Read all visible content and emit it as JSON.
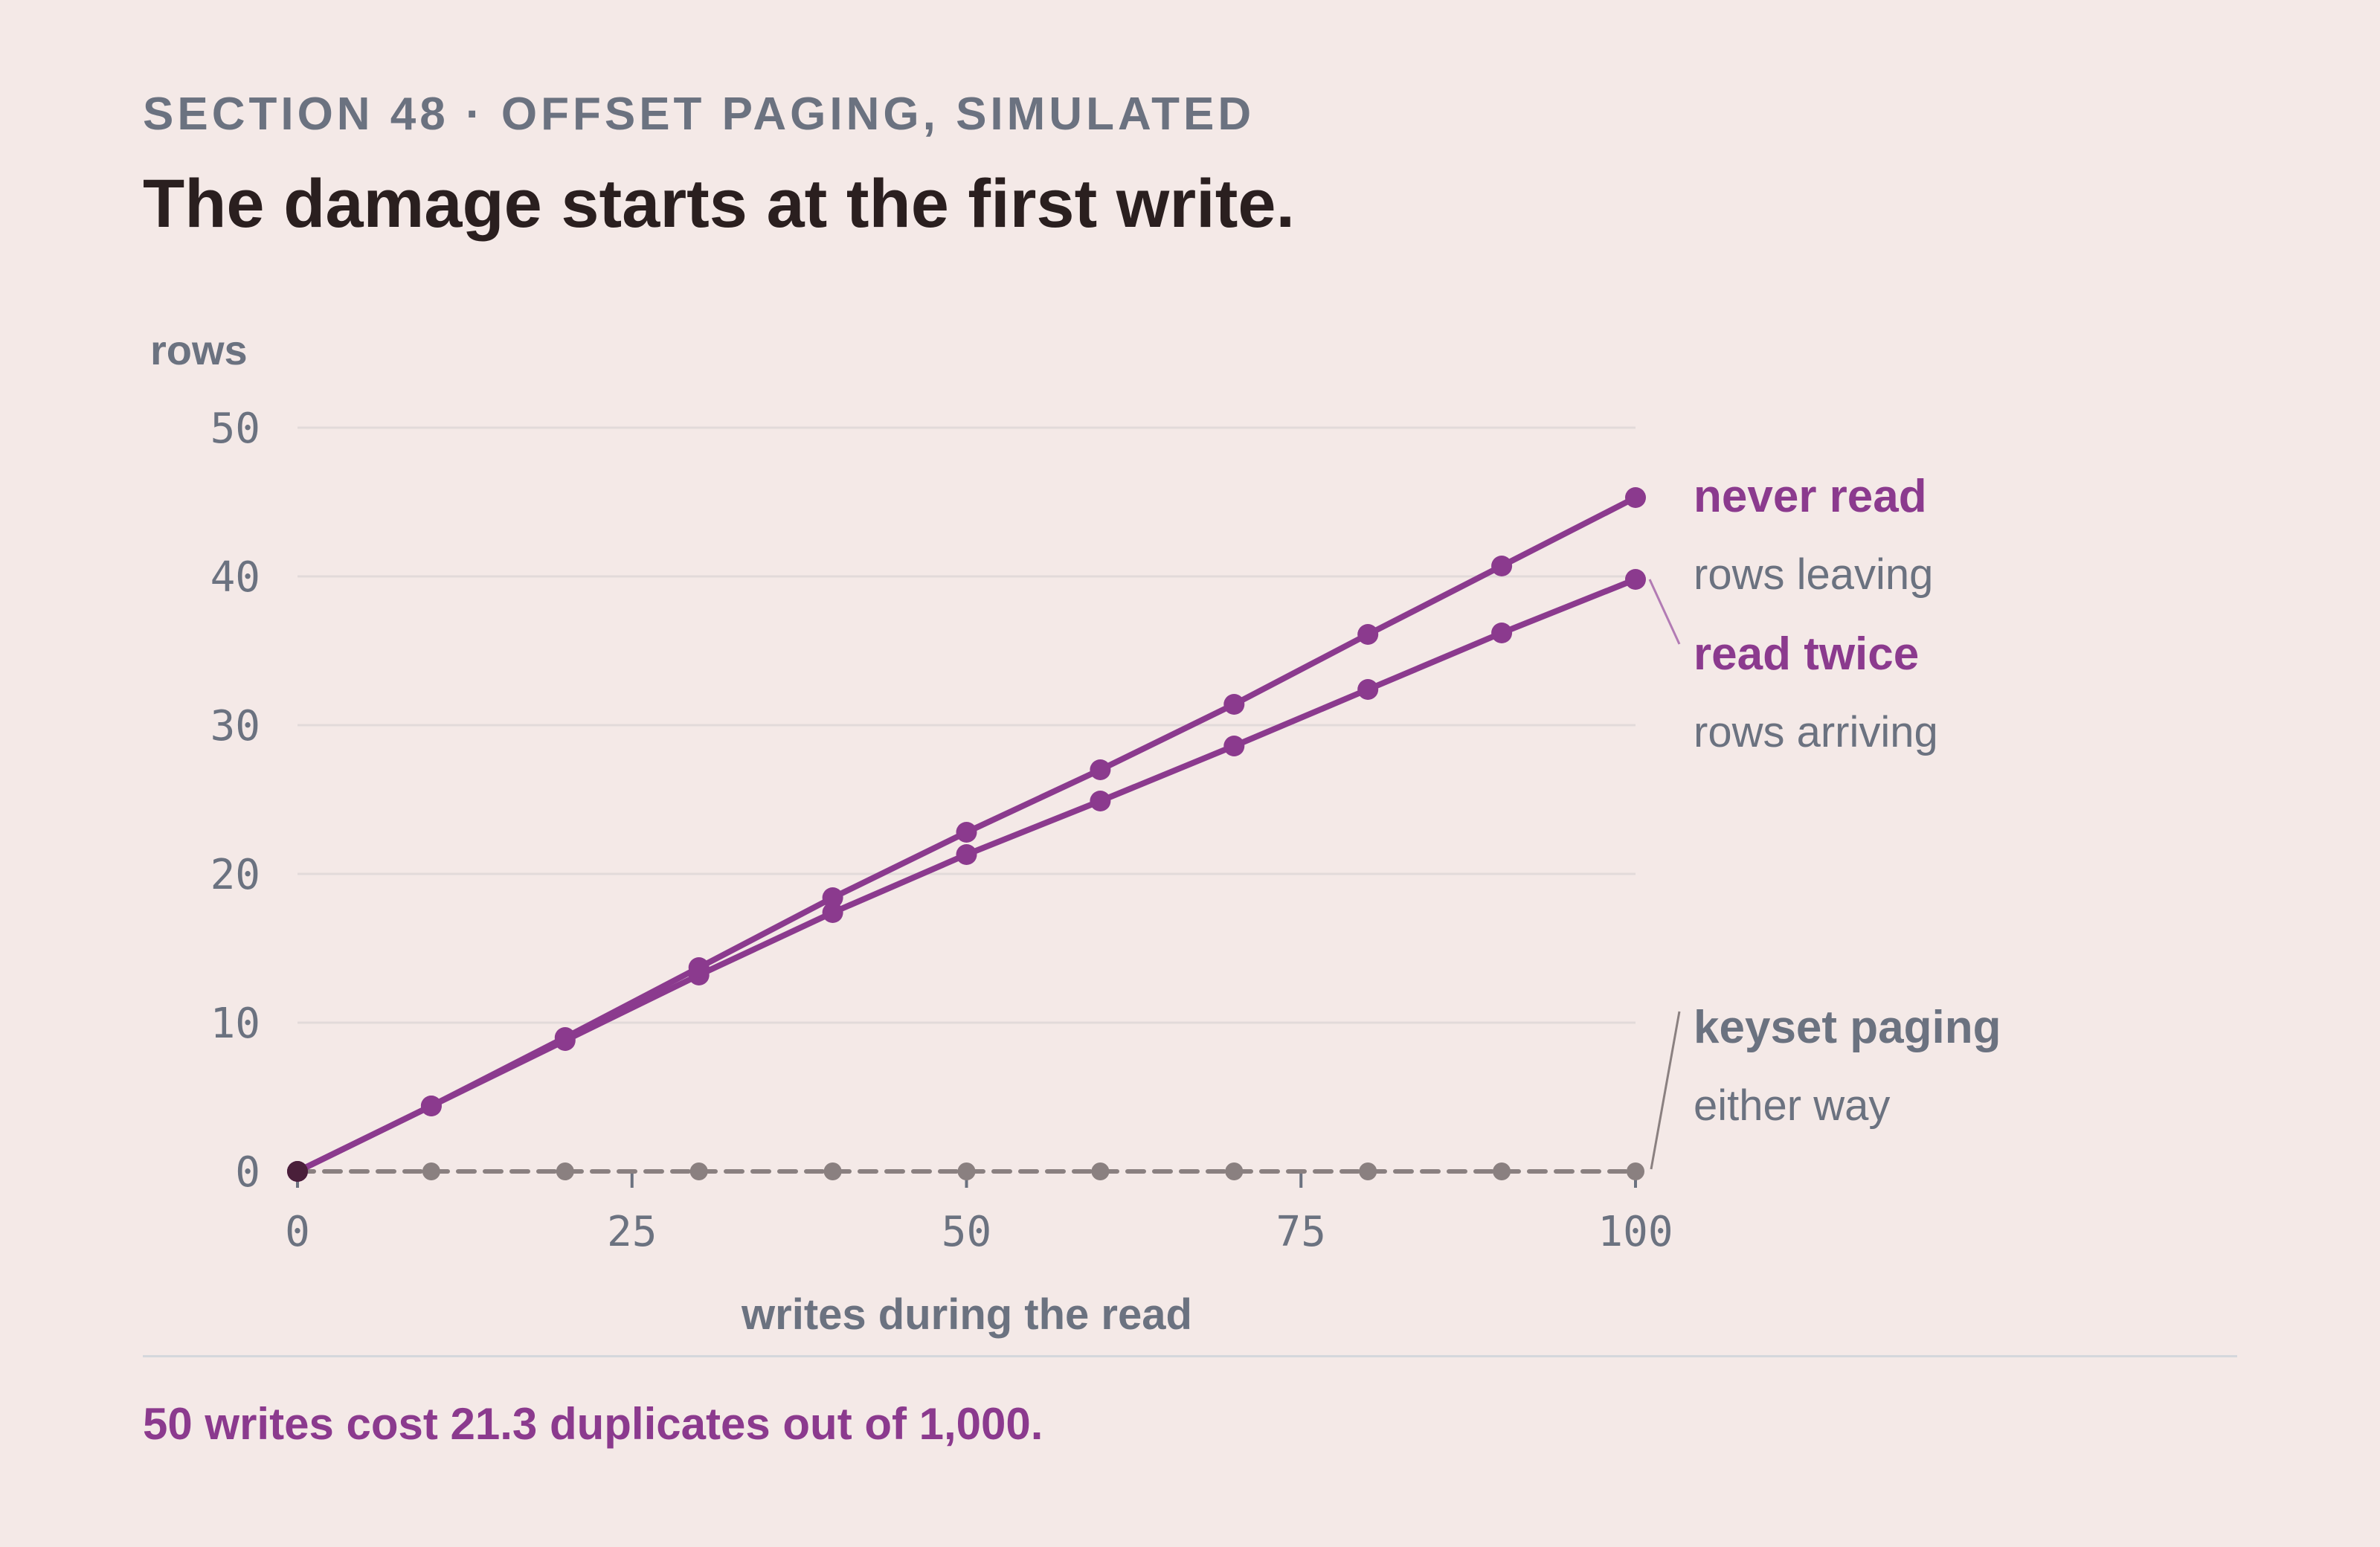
{
  "header": {
    "eyebrow": "SECTION 48 · OFFSET PAGING, SIMULATED",
    "title": "The damage starts at the first write."
  },
  "footer": {
    "note": "50 writes cost 21.3 duplicates out of 1,000."
  },
  "colors": {
    "accent": "#8b3a8e",
    "neutral": "#6b7280",
    "baseline": "#8a8080",
    "grid": "#e2dada",
    "origin": "#4a1f3a"
  },
  "chart_data": {
    "type": "line",
    "title": "",
    "xlabel": "writes during the read",
    "ylabel": "rows",
    "xlim": [
      0,
      100
    ],
    "ylim": [
      0,
      50
    ],
    "xticks": [
      0,
      25,
      50,
      75,
      100
    ],
    "yticks": [
      0,
      10,
      20,
      30,
      40,
      50
    ],
    "x": [
      0,
      10,
      20,
      30,
      40,
      50,
      60,
      70,
      80,
      90,
      100
    ],
    "grid": true,
    "legend": "direct labels at right",
    "series": [
      {
        "name": "never read",
        "sublabel": "rows leaving",
        "style": "solid",
        "values": [
          0,
          4.4,
          9.0,
          13.7,
          18.4,
          22.8,
          27.0,
          31.4,
          36.1,
          40.7,
          45.3
        ]
      },
      {
        "name": "read twice",
        "sublabel": "rows arriving",
        "style": "solid",
        "values": [
          0,
          4.4,
          8.8,
          13.2,
          17.4,
          21.3,
          24.9,
          28.6,
          32.4,
          36.2,
          39.8
        ]
      },
      {
        "name": "keyset paging",
        "sublabel": "either way",
        "style": "dashed",
        "values": [
          0,
          0,
          0,
          0,
          0,
          0,
          0,
          0,
          0,
          0,
          0
        ]
      }
    ]
  }
}
